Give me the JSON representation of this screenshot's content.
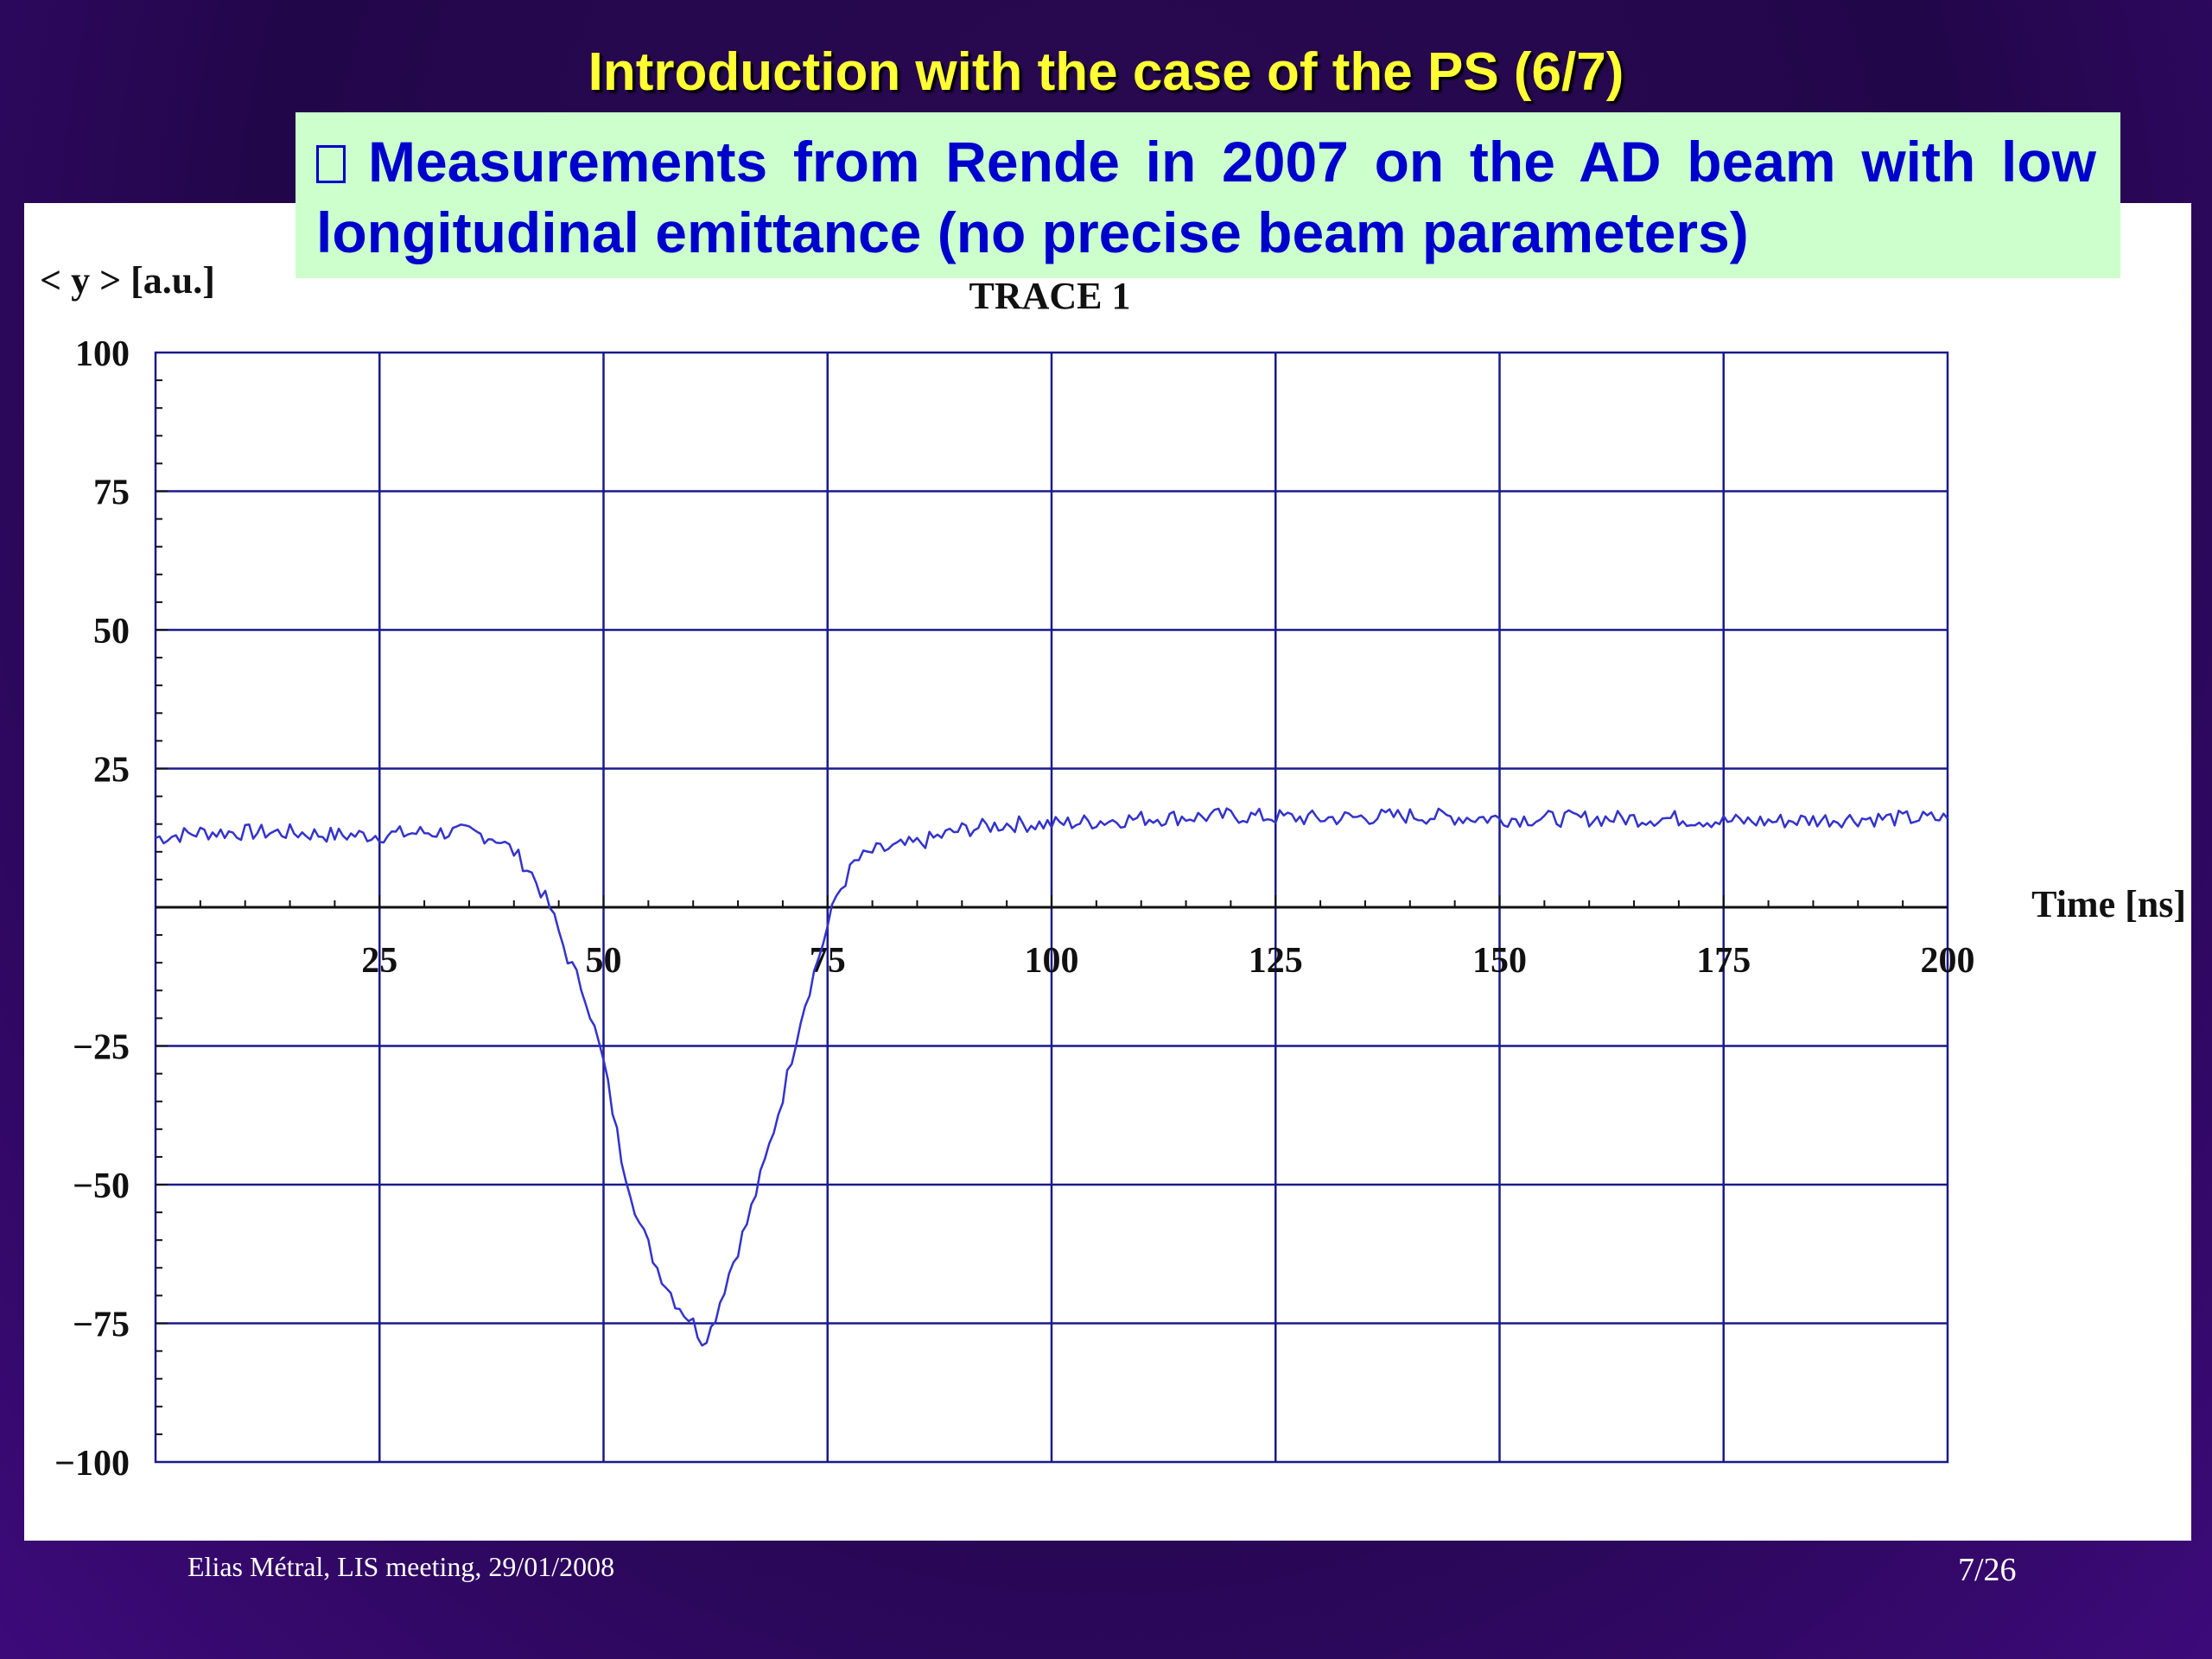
{
  "slide": {
    "title": "Introduction with the case of the PS (6/7)",
    "callout": "Measurements from Rende in 2007 on the AD beam with low longitudinal emittance (no precise beam parameters)",
    "footer_left": "Elias Métral, LIS meeting, 29/01/2008",
    "page": "7/26"
  },
  "colors": {
    "title": "#ffff33",
    "callout_bg": "#ccffcc",
    "callout_text": "#0000cc",
    "trace": "#3333cc",
    "grid": "#1a1a8c"
  },
  "chart_data": {
    "type": "line",
    "title": "TRACE 1",
    "xlabel": "Time [ns]",
    "ylabel": "< y > [a.u.]",
    "xlim": [
      0,
      200
    ],
    "ylim": [
      -100,
      100
    ],
    "x_ticks": [
      "25",
      "50",
      "75",
      "100",
      "125",
      "150",
      "175",
      "200"
    ],
    "y_ticks": [
      "100",
      "75",
      "50",
      "25",
      "−25",
      "−50",
      "−75",
      "−100"
    ],
    "grid": true,
    "series": [
      {
        "x": [
          0,
          5,
          10,
          15,
          20,
          25,
          30,
          35,
          38,
          40,
          42,
          44,
          46,
          48,
          50,
          52,
          54,
          56,
          58,
          60,
          61,
          62,
          64,
          66,
          68,
          70,
          72,
          74,
          76,
          78,
          80,
          85,
          90,
          95,
          100,
          110,
          120,
          130,
          140,
          150,
          160,
          170,
          175,
          180,
          190,
          200
        ],
        "y": [
          12.5,
          13.5,
          13.5,
          13.5,
          13,
          13,
          13.5,
          13.5,
          12.5,
          10,
          6,
          0,
          -9,
          -16,
          -28,
          -45,
          -57,
          -65,
          -71,
          -75,
          -78,
          -76,
          -66,
          -57,
          -46,
          -34,
          -20,
          -9,
          2,
          8,
          10,
          11.5,
          14,
          15,
          15,
          16,
          16.5,
          16,
          16.5,
          16,
          16,
          16,
          15.5,
          15.5,
          16,
          16
        ]
      }
    ]
  }
}
